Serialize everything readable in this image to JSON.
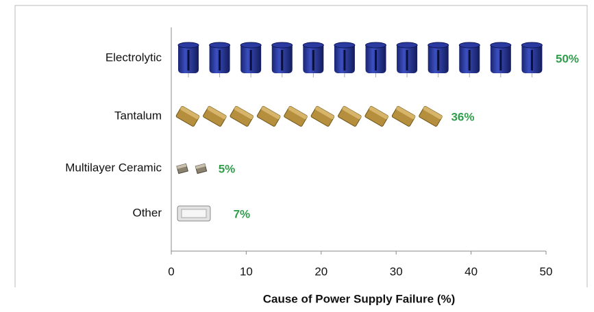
{
  "chart_data": {
    "type": "bar",
    "orientation": "horizontal",
    "categories": [
      "Electrolytic",
      "Tantalum",
      "Multilayer Ceramic",
      "Other"
    ],
    "values": [
      50,
      36,
      5,
      7
    ],
    "value_labels": [
      "50%",
      "36%",
      "5%",
      "7%"
    ],
    "value_label_color": "#2e9e4a",
    "x_label": "Cause of Power Supply Failure (%)",
    "xlim": [
      0,
      50
    ],
    "xticks": [
      0,
      10,
      20,
      30,
      40,
      50
    ],
    "grid": false
  }
}
